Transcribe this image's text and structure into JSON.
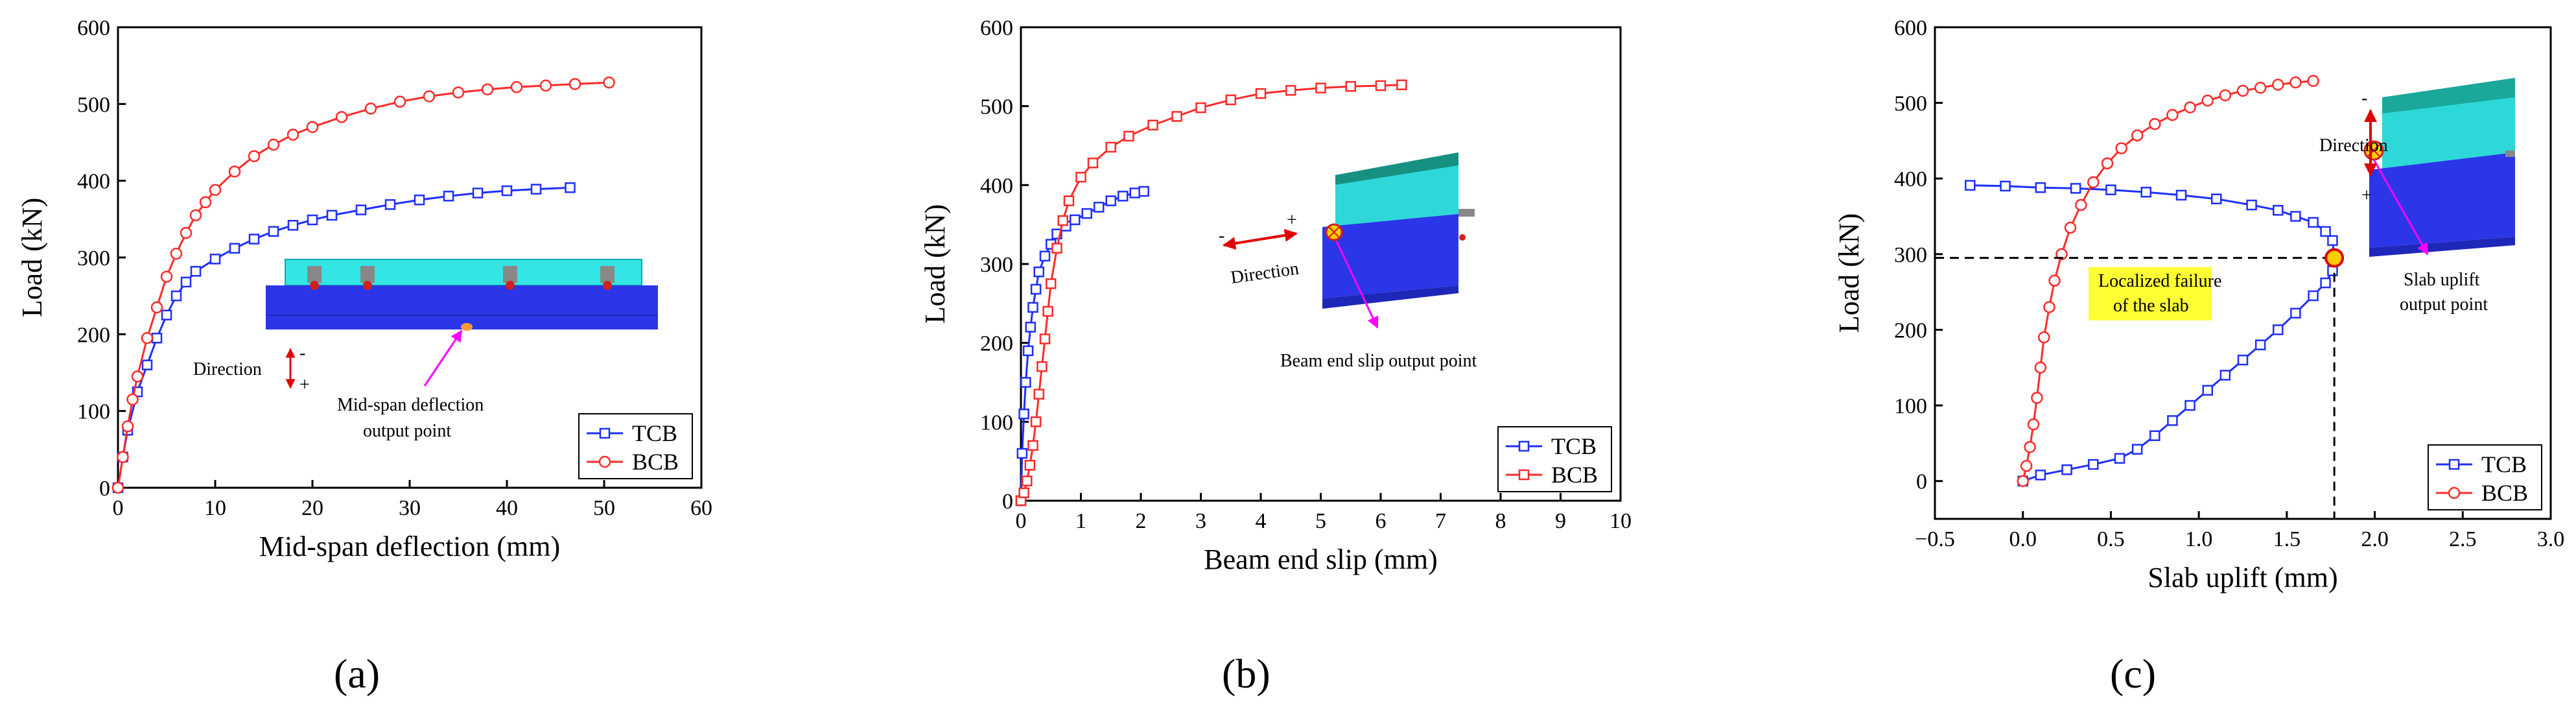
{
  "colors": {
    "tcb": "#1f2fff",
    "bcb": "#ff2b2b",
    "axis": "#000000",
    "highlight": "#ffff33"
  },
  "chart_data": [
    {
      "type": "line",
      "panel_label": "(a)",
      "xlabel": "Mid-span deflection (mm)",
      "ylabel": "Load (kN)",
      "xlim": [
        0,
        60
      ],
      "ylim": [
        0,
        600
      ],
      "xticks": [
        0,
        10,
        20,
        30,
        40,
        50,
        60
      ],
      "yticks": [
        0,
        100,
        200,
        300,
        400,
        500,
        600
      ],
      "legend": "bottom-right",
      "annotations": {
        "direction": "Direction",
        "minus": "-",
        "plus": "+",
        "output_point_1": "Mid-span deflection",
        "output_point_2": "output point"
      },
      "series": [
        {
          "name": "TCB",
          "x": [
            0,
            0.5,
            1,
            2,
            3,
            4,
            5,
            6,
            7,
            8,
            10,
            12,
            14,
            16,
            18,
            20,
            22,
            25,
            28,
            31,
            34,
            37,
            40,
            43,
            46.5
          ],
          "y": [
            0,
            40,
            75,
            125,
            160,
            195,
            225,
            250,
            268,
            282,
            298,
            312,
            324,
            334,
            342,
            349,
            355,
            362,
            369,
            375,
            380,
            384,
            387,
            389,
            391
          ]
        },
        {
          "name": "BCB",
          "x": [
            0,
            0.5,
            1,
            1.5,
            2,
            3,
            4,
            5,
            6,
            7,
            8,
            9,
            10,
            12,
            14,
            16,
            18,
            20,
            23,
            26,
            29,
            32,
            35,
            38,
            41,
            44,
            47,
            50.5
          ],
          "y": [
            0,
            40,
            80,
            115,
            145,
            195,
            235,
            275,
            305,
            332,
            355,
            372,
            388,
            412,
            432,
            447,
            460,
            470,
            483,
            494,
            503,
            510,
            515,
            519,
            522,
            524,
            526,
            528
          ]
        }
      ]
    },
    {
      "type": "line",
      "panel_label": "(b)",
      "xlabel": "Beam end slip (mm)",
      "ylabel": "Load (kN)",
      "xlim": [
        0,
        10
      ],
      "ylim": [
        0,
        600
      ],
      "xticks": [
        0,
        1,
        2,
        3,
        4,
        5,
        6,
        7,
        8,
        9,
        10
      ],
      "yticks": [
        0,
        100,
        200,
        300,
        400,
        500,
        600
      ],
      "legend": "bottom-right",
      "annotations": {
        "direction": "Direction",
        "minus": "-",
        "plus": "+",
        "output_point": "Beam end slip output point"
      },
      "series": [
        {
          "name": "TCB",
          "x": [
            0,
            0.02,
            0.05,
            0.08,
            0.12,
            0.16,
            0.2,
            0.25,
            0.3,
            0.4,
            0.5,
            0.6,
            0.75,
            0.9,
            1.1,
            1.3,
            1.5,
            1.7,
            1.9,
            2.05
          ],
          "y": [
            0,
            60,
            110,
            150,
            190,
            220,
            245,
            268,
            290,
            310,
            325,
            338,
            348,
            356,
            364,
            372,
            380,
            386,
            390,
            392
          ]
        },
        {
          "name": "BCB",
          "x": [
            0,
            0.05,
            0.1,
            0.15,
            0.2,
            0.25,
            0.3,
            0.35,
            0.4,
            0.45,
            0.5,
            0.6,
            0.7,
            0.8,
            1.0,
            1.2,
            1.5,
            1.8,
            2.2,
            2.6,
            3.0,
            3.5,
            4.0,
            4.5,
            5.0,
            5.5,
            6.0,
            6.35
          ],
          "y": [
            0,
            10,
            25,
            45,
            70,
            100,
            135,
            170,
            205,
            240,
            275,
            320,
            355,
            380,
            410,
            428,
            448,
            462,
            476,
            487,
            498,
            508,
            516,
            520,
            523,
            525,
            526,
            527
          ]
        }
      ]
    },
    {
      "type": "line",
      "panel_label": "(c)",
      "xlabel": "Slab uplift (mm)",
      "ylabel": "Load (kN)",
      "xlim": [
        -0.5,
        3.0
      ],
      "ylim": [
        -50,
        600
      ],
      "xticks": [
        -0.5,
        0.0,
        0.5,
        1.0,
        1.5,
        2.0,
        2.5,
        3.0
      ],
      "xtick_labels": [
        "−0.5",
        "0.0",
        "0.5",
        "1.0",
        "1.5",
        "2.0",
        "2.5",
        "3.0"
      ],
      "yticks": [
        0,
        100,
        200,
        300,
        400,
        500,
        600
      ],
      "legend": "bottom-right",
      "failure_point": {
        "x": 1.77,
        "y": 295
      },
      "annotations": {
        "failure_1": "Localized failure",
        "failure_2": "of the slab",
        "direction": "Direction",
        "minus": "-",
        "plus": "+",
        "output_point_1": "Slab uplift",
        "output_point_2": "output point"
      },
      "series": [
        {
          "name": "TCB",
          "x": [
            0.0,
            0.1,
            0.25,
            0.4,
            0.55,
            0.65,
            0.75,
            0.85,
            0.95,
            1.05,
            1.15,
            1.25,
            1.35,
            1.45,
            1.55,
            1.65,
            1.72,
            1.76,
            1.77,
            1.76,
            1.72,
            1.65,
            1.55,
            1.45,
            1.3,
            1.1,
            0.9,
            0.7,
            0.5,
            0.3,
            0.1,
            -0.1,
            -0.3
          ],
          "y": [
            0,
            8,
            15,
            22,
            30,
            42,
            60,
            80,
            100,
            120,
            140,
            160,
            180,
            200,
            222,
            245,
            262,
            278,
            295,
            318,
            330,
            342,
            350,
            358,
            365,
            373,
            378,
            382,
            385,
            387,
            388,
            390,
            391
          ]
        },
        {
          "name": "BCB",
          "x": [
            0.0,
            0.02,
            0.04,
            0.06,
            0.08,
            0.1,
            0.12,
            0.15,
            0.18,
            0.22,
            0.27,
            0.33,
            0.4,
            0.48,
            0.56,
            0.65,
            0.75,
            0.85,
            0.95,
            1.05,
            1.15,
            1.25,
            1.35,
            1.45,
            1.55,
            1.65
          ],
          "y": [
            0,
            20,
            45,
            75,
            110,
            150,
            190,
            230,
            265,
            300,
            335,
            365,
            395,
            420,
            440,
            457,
            472,
            484,
            494,
            503,
            510,
            516,
            520,
            524,
            527,
            529
          ]
        }
      ]
    }
  ]
}
